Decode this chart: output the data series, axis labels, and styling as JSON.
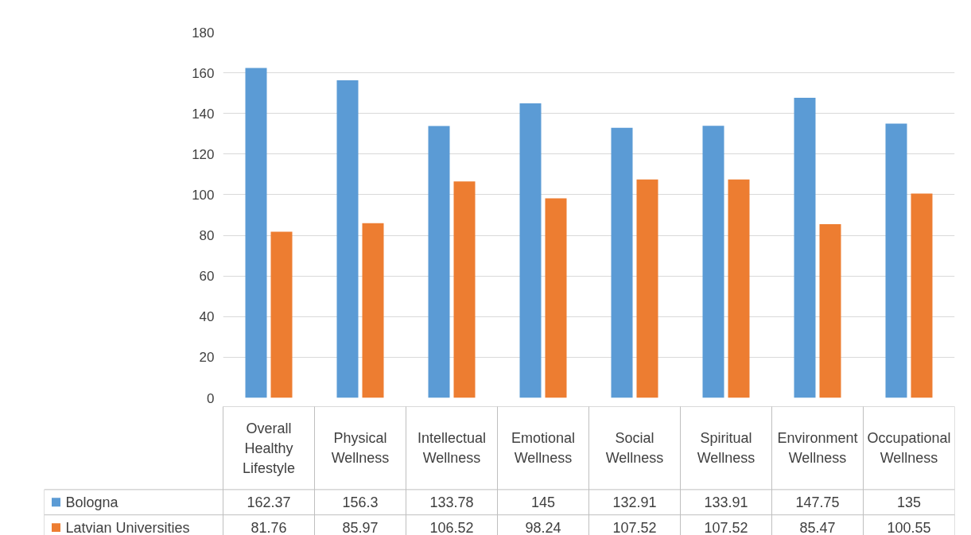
{
  "chart_data": {
    "type": "bar",
    "categories": [
      "Overall Healthy Lifestyle",
      "Physical Wellness",
      "Intellectual Wellness",
      "Emotional Wellness",
      "Social Wellness",
      "Spiritual Wellness",
      "Environment Wellness",
      "Occupational Wellness"
    ],
    "series": [
      {
        "name": "Bologna",
        "color": "#5b9bd5",
        "values": [
          162.37,
          156.3,
          133.78,
          145,
          132.91,
          133.91,
          147.75,
          135
        ]
      },
      {
        "name": "Latvian Universities",
        "color": "#ed7d31",
        "values": [
          81.76,
          85.97,
          106.52,
          98.24,
          107.52,
          107.52,
          85.47,
          100.55
        ]
      }
    ],
    "ylim": [
      0,
      180
    ],
    "yticks": [
      0,
      20,
      40,
      60,
      80,
      100,
      120,
      140,
      160,
      180
    ],
    "grid": "y",
    "data_labels": true,
    "legend": "bottom"
  }
}
